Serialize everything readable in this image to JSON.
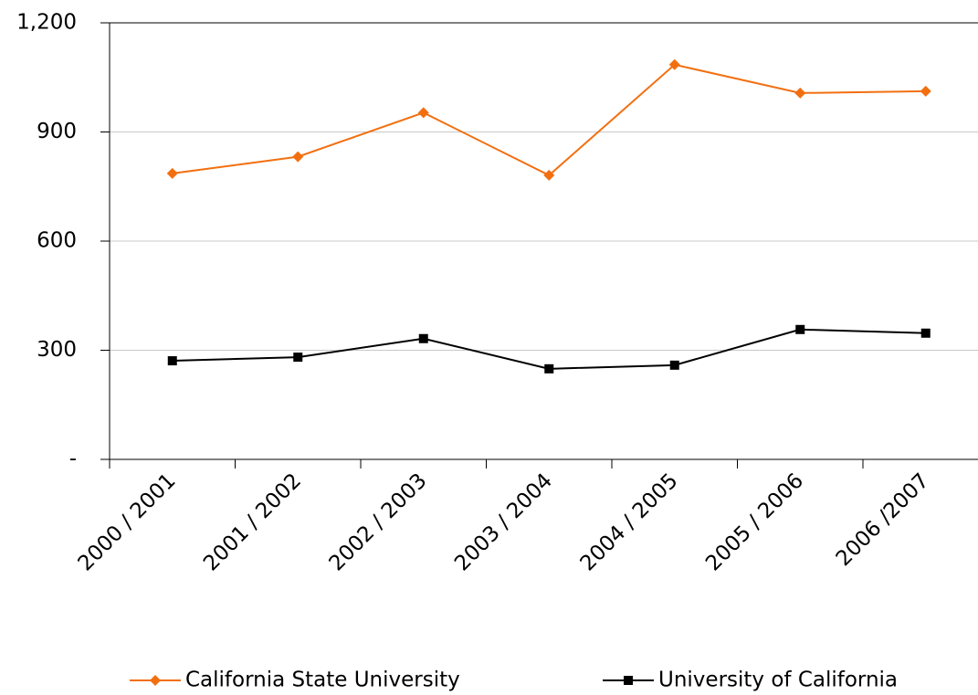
{
  "chart_data": {
    "type": "line",
    "categories": [
      "2000 / 2001",
      "2001 / 2002",
      "2002 / 2003",
      "2003 / 2004",
      "2004 / 2005",
      "2005 / 2006",
      "2006 /2007"
    ],
    "series": [
      {
        "name": "California State University",
        "color": "#f26f10",
        "marker": "diamond",
        "values": [
          786,
          832,
          953,
          781,
          1085,
          1007,
          1012
        ]
      },
      {
        "name": "University of California",
        "color": "#000000",
        "marker": "square",
        "values": [
          271,
          281,
          332,
          249,
          259,
          357,
          347
        ]
      }
    ],
    "ylim": [
      0,
      1200
    ],
    "yticks": [
      {
        "value": 0,
        "label": "-"
      },
      300,
      600,
      900,
      {
        "value": 1200,
        "label": "1,200"
      }
    ],
    "grid": true,
    "legend": "bottom"
  }
}
